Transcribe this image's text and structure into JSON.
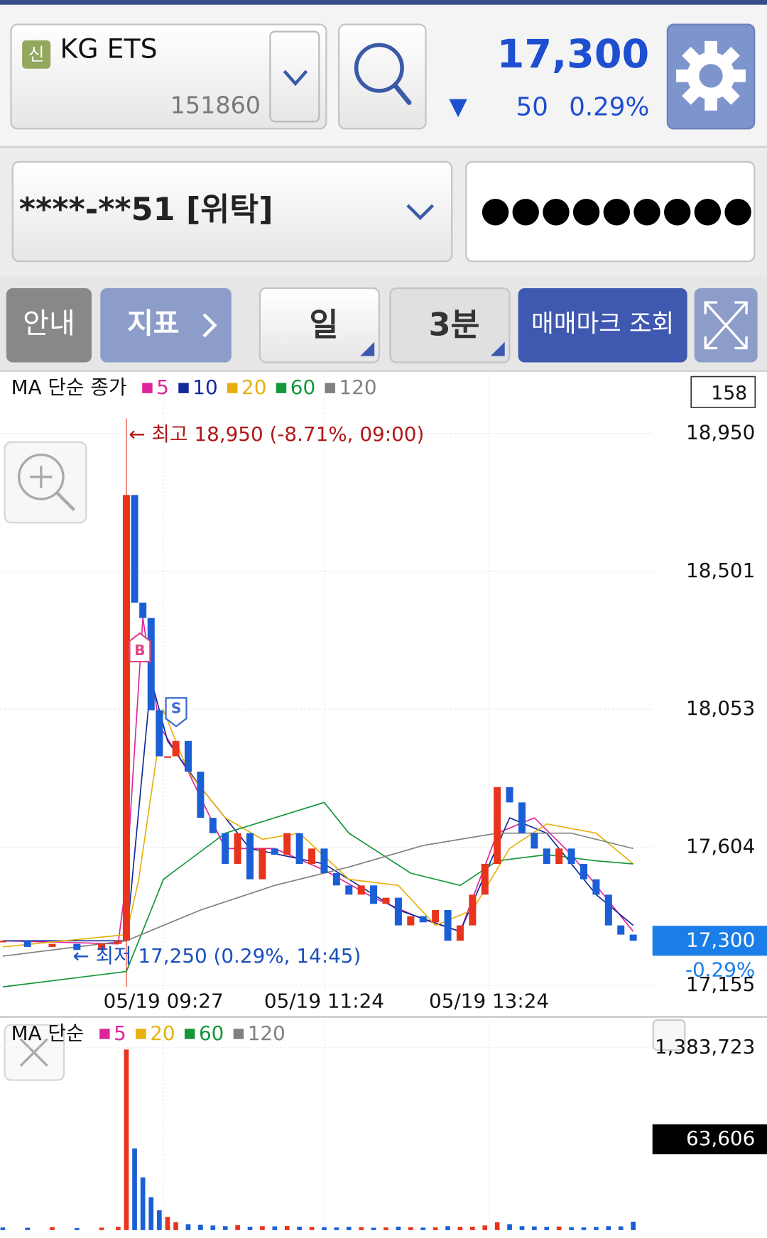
{
  "header": {
    "badge": "신",
    "name": "KG ETS",
    "code": "151860",
    "price": "17,300",
    "change_arrow": "▼",
    "change": "50",
    "change_pct": "0.29%"
  },
  "account": {
    "number": "****-**51 [위탁]",
    "password": "●●●●●●●●●"
  },
  "toolbar": {
    "info": "안내",
    "indicator": "지표",
    "period": "일",
    "interval": "3분",
    "trade_marks": "매매마크 조회"
  },
  "chart_data": [
    {
      "type": "candlestick",
      "legend_title": "MA 단순 종가",
      "count_box": "158",
      "buy_mark": "B",
      "sell_mark": "S",
      "x": [
        -90,
        -72,
        -54,
        -36,
        -18,
        -6,
        0,
        6,
        12,
        18,
        24,
        30,
        36,
        45,
        54,
        63,
        72,
        81,
        90,
        99,
        108,
        117,
        126,
        135,
        144,
        153,
        162,
        171,
        180,
        189,
        198,
        207,
        216,
        225,
        234,
        243,
        252,
        261,
        270,
        279,
        288,
        297,
        306,
        315,
        324,
        333,
        342,
        351,
        360,
        369
      ],
      "values": [
        17300,
        17280,
        17290,
        17270,
        17290,
        17300,
        18750,
        18400,
        18350,
        18050,
        17900,
        17900,
        17950,
        17850,
        17700,
        17650,
        17550,
        17650,
        17500,
        17600,
        17580,
        17650,
        17550,
        17600,
        17520,
        17480,
        17450,
        17480,
        17420,
        17440,
        17350,
        17380,
        17360,
        17400,
        17300,
        17350,
        17450,
        17550,
        17800,
        17750,
        17650,
        17600,
        17550,
        17600,
        17550,
        17500,
        17450,
        17350,
        17320,
        17300
      ],
      "up_color": "#e8341c",
      "down_color": "#1a5fd6",
      "series": [
        {
          "name": "5",
          "color": "#e0259a",
          "x": [
            -90,
            -6,
            0,
            12,
            24,
            45,
            72,
            108,
            144,
            180,
            216,
            243,
            270,
            297,
            324,
            369
          ],
          "values": [
            17300,
            17290,
            17500,
            18350,
            18000,
            17850,
            17600,
            17600,
            17530,
            17440,
            17370,
            17330,
            17650,
            17700,
            17580,
            17330
          ]
        },
        {
          "name": "10",
          "color": "#12299a",
          "x": [
            -90,
            0,
            18,
            30,
            54,
            90,
            144,
            198,
            243,
            279,
            306,
            342,
            369
          ],
          "values": [
            17300,
            17300,
            18150,
            17950,
            17800,
            17600,
            17550,
            17400,
            17330,
            17700,
            17650,
            17450,
            17350
          ]
        },
        {
          "name": "20",
          "color": "#e8b00c",
          "x": [
            -90,
            0,
            9,
            27,
            45,
            72,
            99,
            126,
            162,
            198,
            225,
            252,
            279,
            306,
            342,
            369
          ],
          "values": [
            17280,
            17320,
            17500,
            18050,
            17850,
            17700,
            17630,
            17650,
            17500,
            17480,
            17350,
            17400,
            17600,
            17680,
            17650,
            17550
          ]
        },
        {
          "name": "60",
          "color": "#14963a",
          "x": [
            -90,
            0,
            27,
            72,
            108,
            144,
            162,
            207,
            243,
            270,
            306,
            342,
            369
          ],
          "values": [
            17150,
            17200,
            17500,
            17650,
            17700,
            17750,
            17650,
            17520,
            17480,
            17560,
            17580,
            17560,
            17550
          ]
        },
        {
          "name": "120",
          "color": "#808080",
          "x": [
            -90,
            0,
            54,
            108,
            162,
            216,
            270,
            324,
            369
          ],
          "values": [
            17250,
            17300,
            17400,
            17480,
            17540,
            17610,
            17650,
            17650,
            17600
          ]
        }
      ],
      "xlim": [
        -92,
        383
      ],
      "xticks": [
        {
          "value": 27,
          "label": "05/19 09:27"
        },
        {
          "value": 144,
          "label": "05/19 11:24"
        },
        {
          "value": 264,
          "label": "05/19 13:24"
        }
      ],
      "ylim": [
        17137,
        19148
      ],
      "yticks": [
        {
          "value": 18950,
          "label": "18,950"
        },
        {
          "value": 18501,
          "label": "18,501"
        },
        {
          "value": 18053,
          "label": "18,053"
        },
        {
          "value": 17604,
          "label": "17,604"
        },
        {
          "value": 17155,
          "label": "17,155"
        }
      ],
      "last_value": {
        "value": 17300,
        "label": "17,300"
      },
      "last_change": "-0.29%",
      "annotations": [
        "← 최고 18,950 (-8.71%, 09:00)",
        "← 최저 17,250 (0.29%, 14:45)"
      ],
      "grid": true
    },
    {
      "type": "bar",
      "legend_title": "MA 단순",
      "x": [
        -90,
        -72,
        -54,
        -36,
        -18,
        -6,
        0,
        6,
        12,
        18,
        24,
        30,
        36,
        45,
        54,
        63,
        72,
        81,
        90,
        99,
        108,
        117,
        126,
        135,
        144,
        153,
        162,
        171,
        180,
        189,
        198,
        207,
        216,
        225,
        234,
        243,
        252,
        261,
        270,
        279,
        288,
        297,
        306,
        315,
        324,
        333,
        342,
        351,
        360,
        369
      ],
      "values": [
        20000,
        18000,
        22000,
        15000,
        19000,
        25000,
        1370000,
        620000,
        400000,
        250000,
        150000,
        100000,
        60000,
        45000,
        40000,
        35000,
        30000,
        38000,
        25000,
        30000,
        28000,
        32000,
        26000,
        24000,
        22000,
        20000,
        25000,
        21000,
        18000,
        20000,
        26000,
        22000,
        19000,
        21000,
        30000,
        24000,
        26000,
        35000,
        60000,
        45000,
        30000,
        28000,
        25000,
        27000,
        22000,
        20000,
        24000,
        30000,
        28000,
        63606
      ],
      "legend": [
        {
          "name": "5",
          "color": "#e0259a"
        },
        {
          "name": "20",
          "color": "#e8b00c"
        },
        {
          "name": "60",
          "color": "#14963a"
        },
        {
          "name": "120",
          "color": "#808080"
        }
      ],
      "xlim": [
        -92,
        383
      ],
      "ylim": [
        0,
        1605000
      ],
      "yticks": [
        {
          "value": 1383723,
          "label": "1,383,723"
        }
      ],
      "last_value": {
        "value": 63606,
        "label": "63,606"
      }
    }
  ]
}
